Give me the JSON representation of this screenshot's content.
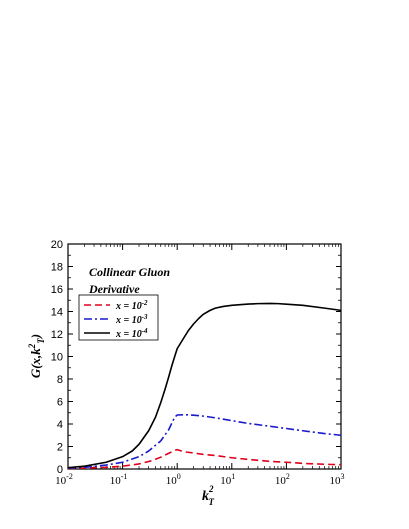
{
  "chart_data": {
    "type": "line",
    "title": "",
    "annotation_lines": [
      "Collinear Gluon",
      "Derivative"
    ],
    "ylabel": "G(x,k",
    "ylabel_sup": "2",
    "ylabel_sub": "T",
    "ylabel_close": ")",
    "xlabel": "k",
    "xlabel_sup": "2",
    "xlabel_sub": "T",
    "x_scale": "log",
    "xlim": [
      0.01,
      1000
    ],
    "ylim": [
      0,
      20
    ],
    "y_ticks": [
      "0",
      "2",
      "4",
      "6",
      "8",
      "10",
      "12",
      "14",
      "16",
      "18",
      "20"
    ],
    "x_ticks": [
      {
        "base": "10",
        "exp": "-2"
      },
      {
        "base": "10",
        "exp": "-1"
      },
      {
        "base": "10",
        "exp": "0"
      },
      {
        "base": "10",
        "exp": "1"
      },
      {
        "base": "10",
        "exp": "2"
      },
      {
        "base": "10",
        "exp": "3"
      }
    ],
    "legend_position": "upper-left",
    "grid": false,
    "series": [
      {
        "name": "x = 10",
        "name_sup": "-2",
        "color": "#e0001b",
        "dash": "dashed",
        "x": [
          0.01,
          0.02,
          0.05,
          0.1,
          0.2,
          0.35,
          0.5,
          0.7,
          0.9,
          1.0,
          1.2,
          1.5,
          2,
          3,
          5,
          10,
          20,
          50,
          100,
          200,
          500,
          1000
        ],
        "y": [
          0.05,
          0.08,
          0.15,
          0.25,
          0.45,
          0.75,
          1.05,
          1.4,
          1.65,
          1.72,
          1.6,
          1.5,
          1.42,
          1.3,
          1.2,
          1.0,
          0.85,
          0.68,
          0.6,
          0.5,
          0.42,
          0.38
        ]
      },
      {
        "name": "x = 10",
        "name_sup": "-3",
        "color": "#1a1acc",
        "dash": "dashdot",
        "x": [
          0.01,
          0.02,
          0.05,
          0.1,
          0.2,
          0.3,
          0.5,
          0.7,
          0.8,
          0.9,
          1.0,
          1.5,
          2,
          3,
          5,
          10,
          20,
          50,
          100,
          200,
          500,
          1000
        ],
        "y": [
          0.08,
          0.15,
          0.35,
          0.6,
          1.1,
          1.6,
          2.5,
          3.5,
          4.1,
          4.6,
          4.8,
          4.82,
          4.78,
          4.7,
          4.55,
          4.3,
          4.05,
          3.8,
          3.6,
          3.4,
          3.15,
          3.0
        ]
      },
      {
        "name": "x = 10",
        "name_sup": "-4",
        "color": "#000000",
        "dash": "solid",
        "x": [
          0.01,
          0.02,
          0.05,
          0.1,
          0.15,
          0.2,
          0.3,
          0.4,
          0.5,
          0.6,
          0.7,
          0.8,
          0.9,
          1.0,
          1.3,
          1.6,
          2,
          2.5,
          3,
          4,
          5,
          7,
          10,
          15,
          20,
          30,
          50,
          70,
          100,
          200,
          500,
          1000
        ],
        "y": [
          0.12,
          0.25,
          0.6,
          1.1,
          1.6,
          2.2,
          3.4,
          4.6,
          5.9,
          7.1,
          8.2,
          9.2,
          10.0,
          10.7,
          11.6,
          12.3,
          12.9,
          13.4,
          13.75,
          14.1,
          14.3,
          14.45,
          14.55,
          14.62,
          14.66,
          14.7,
          14.72,
          14.7,
          14.65,
          14.55,
          14.3,
          14.1
        ]
      }
    ]
  }
}
